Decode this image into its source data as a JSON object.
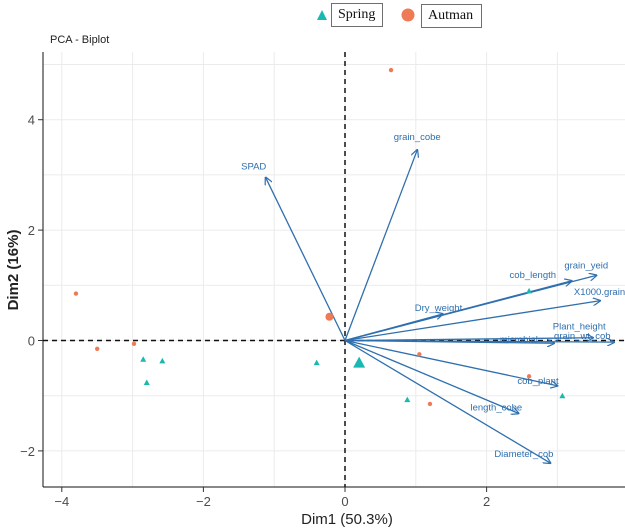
{
  "legend": {
    "items": [
      {
        "label": "Spring",
        "color": "#19b8b2",
        "shape": "triangle"
      },
      {
        "label": "Autman",
        "color": "#ef7a56",
        "shape": "circle"
      }
    ]
  },
  "chart_data": {
    "type": "scatter",
    "title": "PCA - Biplot",
    "xlabel": "Dim1 (50.3%)",
    "ylabel": "Dim2 (16%)",
    "xlim": [
      -4.2,
      3.8
    ],
    "ylim": [
      -2.35,
      5.2
    ],
    "xticks": [
      -4,
      -2,
      0,
      2
    ],
    "yticks": [
      -2,
      0,
      2,
      4
    ],
    "reference_lines": {
      "x": 0,
      "y": 0,
      "style": "dashed"
    },
    "groups": [
      {
        "name": "Spring",
        "color": "#19b8b2",
        "shape": "triangle",
        "points": [
          {
            "x": -2.85,
            "y": -0.34
          },
          {
            "x": -2.58,
            "y": -0.37
          },
          {
            "x": -2.8,
            "y": -0.76
          },
          {
            "x": -0.4,
            "y": -0.4
          },
          {
            "x": 0.88,
            "y": -1.07
          },
          {
            "x": 2.6,
            "y": 0.9
          },
          {
            "x": 3.07,
            "y": -1.0
          }
        ],
        "centroid": {
          "x": 0.2,
          "y": -0.4
        }
      },
      {
        "name": "Autman",
        "color": "#ef7a56",
        "shape": "circle",
        "points": [
          {
            "x": -3.8,
            "y": 0.85
          },
          {
            "x": -3.5,
            "y": -0.15
          },
          {
            "x": -2.98,
            "y": -0.06
          },
          {
            "x": 0.65,
            "y": 4.9
          },
          {
            "x": 1.05,
            "y": -0.25
          },
          {
            "x": 1.2,
            "y": -1.15
          },
          {
            "x": 2.6,
            "y": -0.65
          }
        ],
        "centroid": {
          "x": -0.22,
          "y": 0.43
        }
      }
    ],
    "variables": [
      {
        "name": "SPAD",
        "x": -1.12,
        "y": 2.95
      },
      {
        "name": "grain_cobe",
        "x": 1.02,
        "y": 3.45
      },
      {
        "name": "cob_length",
        "x": 3.2,
        "y": 1.08
      },
      {
        "name": "grain_yeid",
        "x": 3.55,
        "y": 1.18
      },
      {
        "name": "X1000.grain",
        "x": 3.6,
        "y": 0.72
      },
      {
        "name": "Dry_weight",
        "x": 1.38,
        "y": 0.48
      },
      {
        "name": "Plant_height",
        "x": 3.5,
        "y": 0.05
      },
      {
        "name": "microbial",
        "x": 2.95,
        "y": -0.05
      },
      {
        "name": "grain_wt_cob",
        "x": 3.8,
        "y": -0.03
      },
      {
        "name": "cob_plant",
        "x": 3.0,
        "y": -0.82
      },
      {
        "name": "length_cobe",
        "x": 2.45,
        "y": -1.32
      },
      {
        "name": "Diameter_cob",
        "x": 2.9,
        "y": -2.22
      }
    ]
  }
}
